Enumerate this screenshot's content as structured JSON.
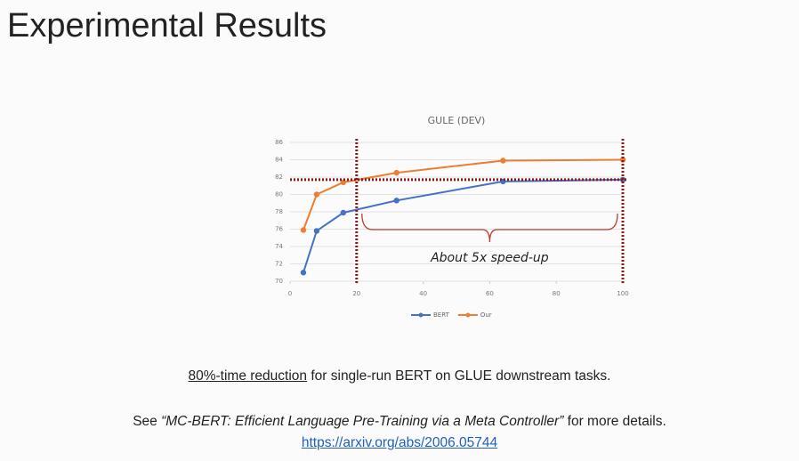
{
  "slide_title": "Experimental Results",
  "chart_data": {
    "type": "line",
    "title": "GULE (DEV)",
    "xlim": [
      0,
      100
    ],
    "xticks": [
      0,
      20,
      40,
      60,
      80,
      100
    ],
    "ylim": [
      70,
      86
    ],
    "yticks": [
      70,
      72,
      74,
      76,
      78,
      80,
      82,
      84,
      86
    ],
    "grid": true,
    "series": [
      {
        "name": "BERT",
        "color": "#4472c4",
        "x": [
          4,
          8,
          16,
          32,
          64,
          100
        ],
        "values": [
          71,
          75.8,
          77.9,
          79.3,
          81.5,
          81.7
        ]
      },
      {
        "name": "Our",
        "color": "#ed7d31",
        "x": [
          4,
          8,
          16,
          32,
          64,
          100
        ],
        "values": [
          75.9,
          80,
          81.4,
          82.5,
          83.9,
          84
        ]
      }
    ],
    "reference_lines": {
      "color": "#8b1a1a",
      "x": [
        20,
        100
      ],
      "y": [
        81.7
      ]
    },
    "annotation": "About 5x speed-up",
    "legend": "bottom"
  },
  "caption": {
    "underlined": "80%-time reduction",
    "rest": " for single-run BERT on GLUE downstream tasks."
  },
  "reference": {
    "prefix": "See ",
    "paper": "“MC-BERT: Efficient Language Pre-Training via a Meta Controller”",
    "suffix": " for more details.",
    "link": "https://arxiv.org/abs/2006.05744"
  }
}
